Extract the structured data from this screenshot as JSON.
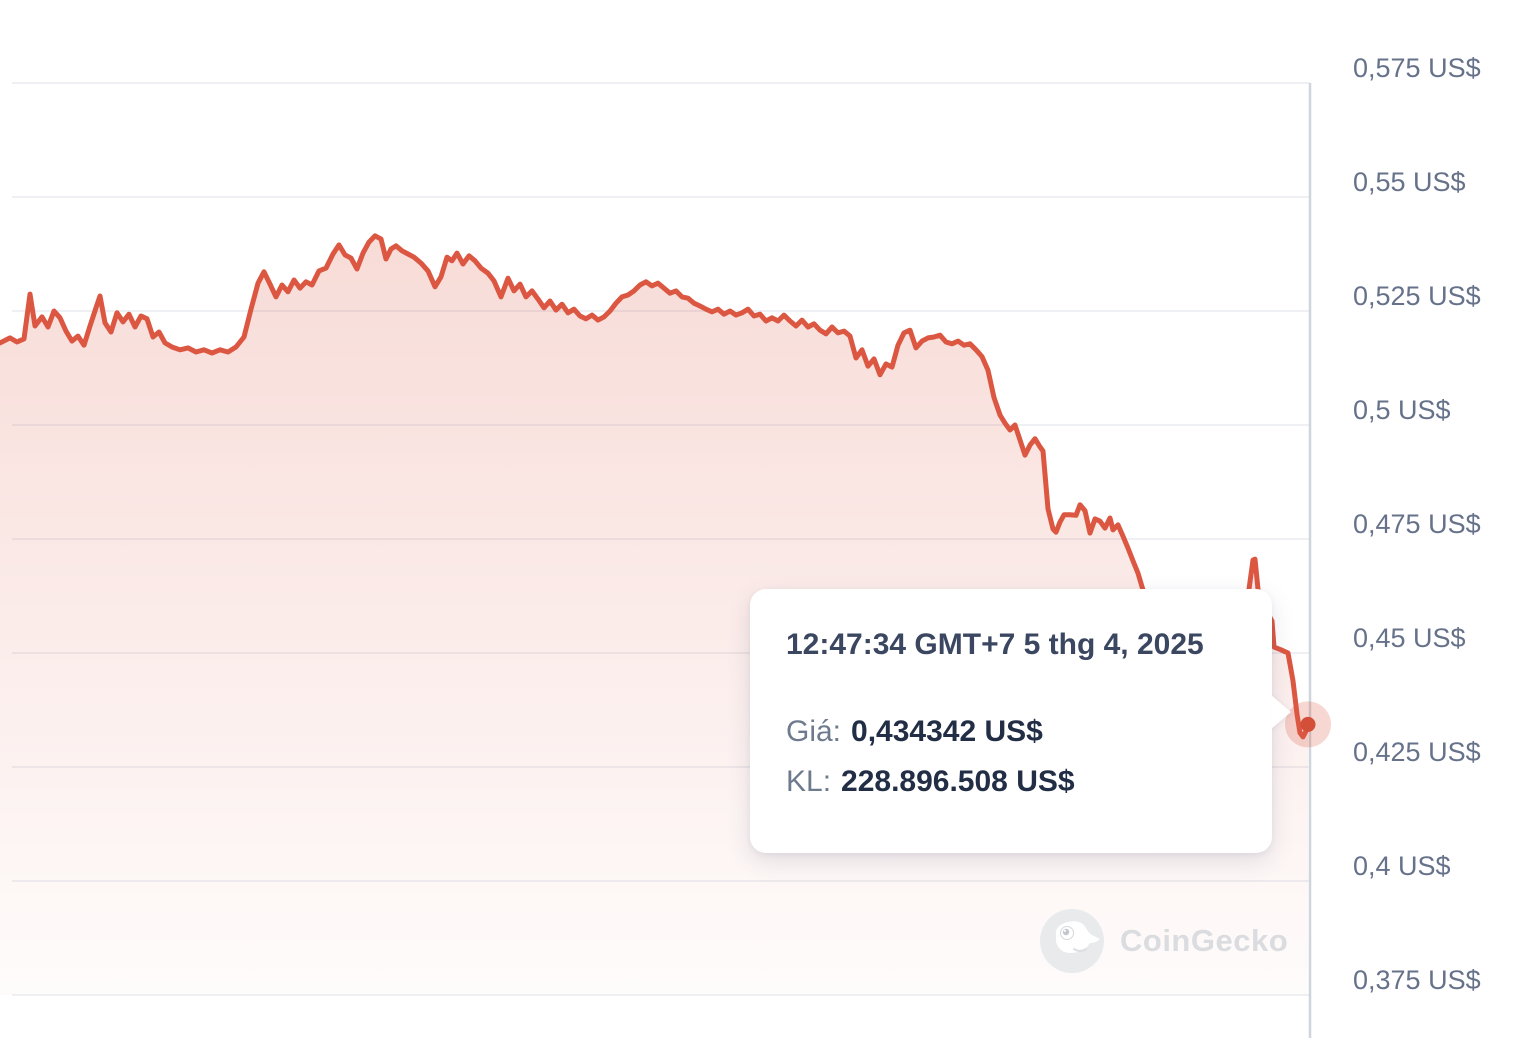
{
  "chart_data": {
    "type": "area",
    "title": "",
    "ylabel": "",
    "xlabel": "",
    "currency": "US$",
    "grid": true,
    "legend_position": "none",
    "y_axis": {
      "side": "right",
      "ylim": [
        0.3675,
        0.5875
      ],
      "ticks": [
        {
          "price": 0.575,
          "label": "0,575 US$"
        },
        {
          "price": 0.55,
          "label": "0,55 US$"
        },
        {
          "price": 0.525,
          "label": "0,525 US$"
        },
        {
          "price": 0.5,
          "label": "0,5 US$"
        },
        {
          "price": 0.475,
          "label": "0,475 US$"
        },
        {
          "price": 0.45,
          "label": "0,45 US$"
        },
        {
          "price": 0.425,
          "label": "0,425 US$"
        },
        {
          "price": 0.4,
          "label": "0,4 US$"
        },
        {
          "price": 0.375,
          "label": "0,375 US$"
        }
      ]
    },
    "series": [
      {
        "name": "price",
        "points": [
          [
            0,
            0.518
          ],
          [
            10,
            0.5191
          ],
          [
            17,
            0.5182
          ],
          [
            24,
            0.5189
          ],
          [
            30,
            0.5287
          ],
          [
            35,
            0.5217
          ],
          [
            42,
            0.5237
          ],
          [
            48,
            0.5215
          ],
          [
            54,
            0.525
          ],
          [
            60,
            0.5235
          ],
          [
            66,
            0.5206
          ],
          [
            72,
            0.5184
          ],
          [
            78,
            0.5195
          ],
          [
            84,
            0.5175
          ],
          [
            90,
            0.5217
          ],
          [
            96,
            0.5257
          ],
          [
            100,
            0.5283
          ],
          [
            105,
            0.5224
          ],
          [
            111,
            0.5204
          ],
          [
            117,
            0.5246
          ],
          [
            123,
            0.5226
          ],
          [
            129,
            0.5243
          ],
          [
            135,
            0.5215
          ],
          [
            141,
            0.5239
          ],
          [
            147,
            0.5233
          ],
          [
            153,
            0.5193
          ],
          [
            159,
            0.5204
          ],
          [
            165,
            0.518
          ],
          [
            172,
            0.5171
          ],
          [
            180,
            0.5165
          ],
          [
            188,
            0.5169
          ],
          [
            196,
            0.516
          ],
          [
            204,
            0.5165
          ],
          [
            212,
            0.5158
          ],
          [
            220,
            0.5165
          ],
          [
            228,
            0.516
          ],
          [
            236,
            0.5171
          ],
          [
            244,
            0.5193
          ],
          [
            251,
            0.5254
          ],
          [
            258,
            0.5311
          ],
          [
            264,
            0.5336
          ],
          [
            270,
            0.5309
          ],
          [
            276,
            0.5281
          ],
          [
            282,
            0.5307
          ],
          [
            288,
            0.5292
          ],
          [
            294,
            0.5318
          ],
          [
            300,
            0.53
          ],
          [
            306,
            0.5314
          ],
          [
            312,
            0.5307
          ],
          [
            319,
            0.5338
          ],
          [
            326,
            0.5344
          ],
          [
            333,
            0.5375
          ],
          [
            339,
            0.5395
          ],
          [
            345,
            0.5373
          ],
          [
            351,
            0.5366
          ],
          [
            357,
            0.5342
          ],
          [
            363,
            0.5377
          ],
          [
            369,
            0.5401
          ],
          [
            375,
            0.5415
          ],
          [
            381,
            0.5408
          ],
          [
            386,
            0.5364
          ],
          [
            391,
            0.5386
          ],
          [
            396,
            0.5393
          ],
          [
            402,
            0.5382
          ],
          [
            408,
            0.5375
          ],
          [
            414,
            0.5368
          ],
          [
            421,
            0.5355
          ],
          [
            428,
            0.5338
          ],
          [
            435,
            0.5303
          ],
          [
            441,
            0.5325
          ],
          [
            447,
            0.5368
          ],
          [
            452,
            0.536
          ],
          [
            457,
            0.5377
          ],
          [
            463,
            0.5353
          ],
          [
            469,
            0.5371
          ],
          [
            475,
            0.536
          ],
          [
            481,
            0.5344
          ],
          [
            488,
            0.5333
          ],
          [
            494,
            0.5316
          ],
          [
            501,
            0.5281
          ],
          [
            508,
            0.5322
          ],
          [
            514,
            0.5294
          ],
          [
            520,
            0.5309
          ],
          [
            526,
            0.5281
          ],
          [
            532,
            0.5294
          ],
          [
            538,
            0.5276
          ],
          [
            544,
            0.5257
          ],
          [
            550,
            0.5272
          ],
          [
            556,
            0.5252
          ],
          [
            562,
            0.5265
          ],
          [
            568,
            0.5246
          ],
          [
            574,
            0.5254
          ],
          [
            580,
            0.5239
          ],
          [
            586,
            0.5233
          ],
          [
            592,
            0.5241
          ],
          [
            598,
            0.523
          ],
          [
            604,
            0.5237
          ],
          [
            610,
            0.525
          ],
          [
            616,
            0.5267
          ],
          [
            622,
            0.5281
          ],
          [
            628,
            0.5285
          ],
          [
            634,
            0.5294
          ],
          [
            640,
            0.5307
          ],
          [
            646,
            0.5314
          ],
          [
            652,
            0.5305
          ],
          [
            658,
            0.5311
          ],
          [
            664,
            0.53
          ],
          [
            670,
            0.5289
          ],
          [
            676,
            0.5294
          ],
          [
            682,
            0.5281
          ],
          [
            688,
            0.5278
          ],
          [
            694,
            0.5267
          ],
          [
            700,
            0.5261
          ],
          [
            706,
            0.5254
          ],
          [
            712,
            0.5248
          ],
          [
            718,
            0.5254
          ],
          [
            724,
            0.5243
          ],
          [
            730,
            0.525
          ],
          [
            736,
            0.5241
          ],
          [
            742,
            0.5246
          ],
          [
            748,
            0.5254
          ],
          [
            754,
            0.5239
          ],
          [
            760,
            0.5243
          ],
          [
            766,
            0.5228
          ],
          [
            772,
            0.5235
          ],
          [
            778,
            0.5228
          ],
          [
            784,
            0.5241
          ],
          [
            790,
            0.5228
          ],
          [
            796,
            0.5217
          ],
          [
            802,
            0.523
          ],
          [
            808,
            0.5215
          ],
          [
            814,
            0.5222
          ],
          [
            820,
            0.5208
          ],
          [
            826,
            0.52
          ],
          [
            832,
            0.5215
          ],
          [
            838,
            0.5202
          ],
          [
            844,
            0.5206
          ],
          [
            850,
            0.5195
          ],
          [
            856,
            0.5147
          ],
          [
            862,
            0.5165
          ],
          [
            868,
            0.5129
          ],
          [
            874,
            0.5145
          ],
          [
            880,
            0.511
          ],
          [
            886,
            0.5134
          ],
          [
            892,
            0.5127
          ],
          [
            898,
            0.5175
          ],
          [
            904,
            0.5202
          ],
          [
            910,
            0.5208
          ],
          [
            916,
            0.5169
          ],
          [
            922,
            0.5184
          ],
          [
            928,
            0.5191
          ],
          [
            934,
            0.5193
          ],
          [
            940,
            0.5197
          ],
          [
            946,
            0.5182
          ],
          [
            952,
            0.5178
          ],
          [
            958,
            0.5184
          ],
          [
            964,
            0.5175
          ],
          [
            970,
            0.5178
          ],
          [
            976,
            0.5165
          ],
          [
            982,
            0.515
          ],
          [
            988,
            0.512
          ],
          [
            994,
            0.506
          ],
          [
            1000,
            0.5022
          ],
          [
            1005,
            0.5004
          ],
          [
            1010,
            0.4989
          ],
          [
            1015,
            0.5
          ],
          [
            1020,
            0.4967
          ],
          [
            1025,
            0.4934
          ],
          [
            1030,
            0.4956
          ],
          [
            1035,
            0.497
          ],
          [
            1040,
            0.4952
          ],
          [
            1043,
            0.4943
          ],
          [
            1048,
            0.4816
          ],
          [
            1053,
            0.4772
          ],
          [
            1056,
            0.4765
          ],
          [
            1060,
            0.4787
          ],
          [
            1064,
            0.4803
          ],
          [
            1070,
            0.4803
          ],
          [
            1076,
            0.4802
          ],
          [
            1080,
            0.4825
          ],
          [
            1085,
            0.4812
          ],
          [
            1090,
            0.4763
          ],
          [
            1095,
            0.4794
          ],
          [
            1100,
            0.4789
          ],
          [
            1105,
            0.4774
          ],
          [
            1110,
            0.4796
          ],
          [
            1113,
            0.477
          ],
          [
            1118,
            0.4781
          ],
          [
            1123,
            0.4756
          ],
          [
            1128,
            0.473
          ],
          [
            1133,
            0.4702
          ],
          [
            1138,
            0.4675
          ],
          [
            1143,
            0.4638
          ],
          [
            1150,
            0.4594
          ],
          [
            1160,
            0.4555
          ],
          [
            1172,
            0.4525
          ],
          [
            1186,
            0.45
          ],
          [
            1200,
            0.4486
          ],
          [
            1215,
            0.449
          ],
          [
            1230,
            0.452
          ],
          [
            1242,
            0.456
          ],
          [
            1249,
            0.464
          ],
          [
            1253,
            0.4704
          ],
          [
            1255,
            0.4706
          ],
          [
            1258,
            0.464
          ],
          [
            1262,
            0.46
          ],
          [
            1266,
            0.4586
          ],
          [
            1270,
            0.4578
          ],
          [
            1272,
            0.457
          ],
          [
            1274,
            0.4513
          ],
          [
            1281,
            0.4507
          ],
          [
            1288,
            0.45
          ],
          [
            1293,
            0.4439
          ],
          [
            1297,
            0.4366
          ],
          [
            1300,
            0.4325
          ],
          [
            1303,
            0.4316
          ],
          [
            1306,
            0.4329
          ],
          [
            1308,
            0.434342
          ]
        ]
      }
    ],
    "last_point": {
      "x": 1308,
      "price": 0.434342
    }
  },
  "tooltip": {
    "datetime": "12:47:34 GMT+7 5 thg 4, 2025",
    "rows": [
      {
        "label": "Giá:",
        "value": "0,434342 US$"
      },
      {
        "label": "KL:",
        "value": "228.896.508 US$"
      }
    ]
  },
  "watermark": {
    "text": "CoinGecko"
  },
  "colors": {
    "line": "#dc5742",
    "area_top": "rgba(220,87,66,0.21)",
    "area_bottom": "rgba(220,87,66,0.02)",
    "halo": "rgba(220,87,66,0.24)",
    "dot": "#d44f38",
    "grid": "#eef0f4",
    "axis": "#cfd5dc",
    "tick_label": "#66718a"
  }
}
